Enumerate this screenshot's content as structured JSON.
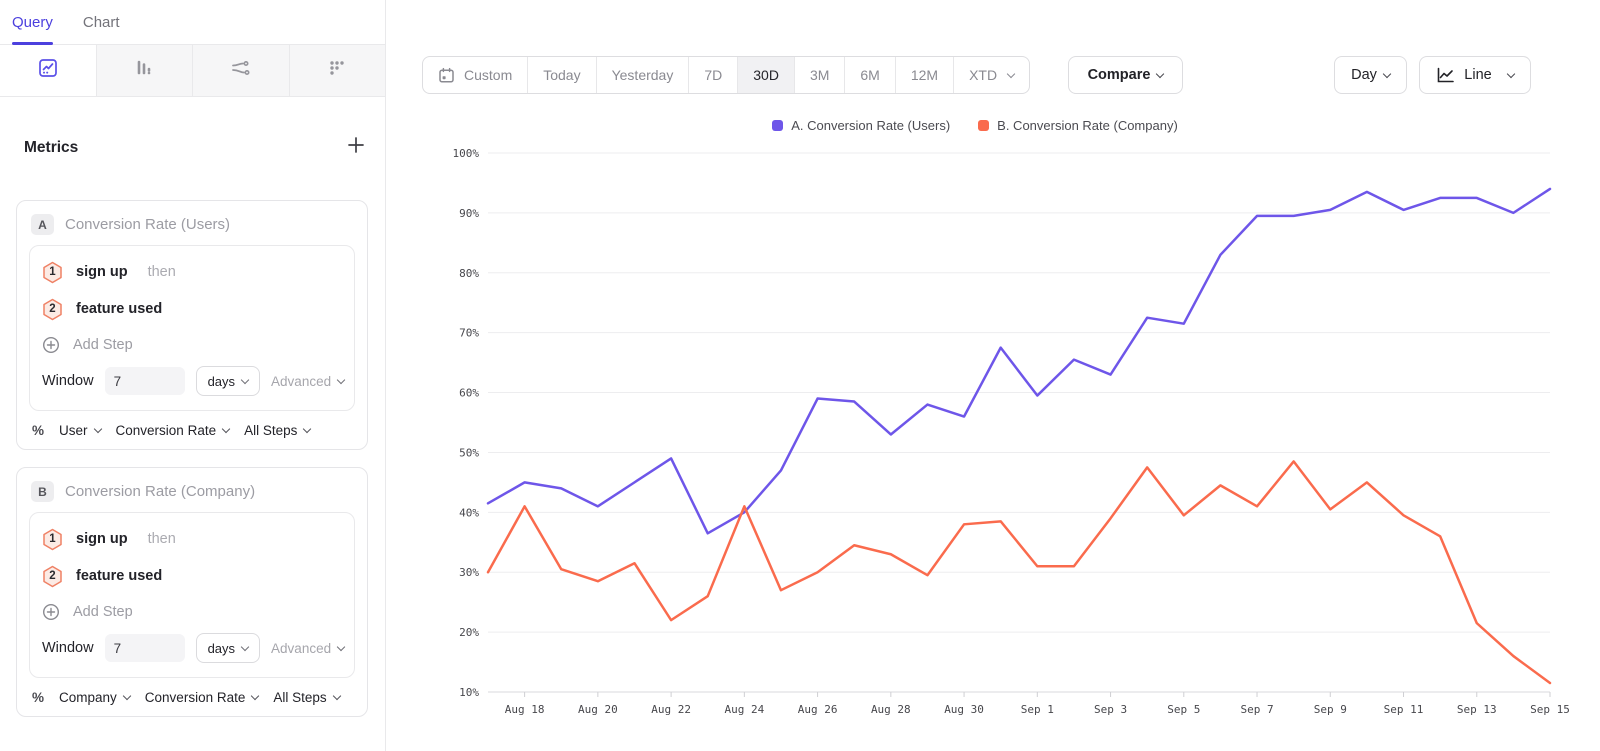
{
  "sidebar": {
    "tabs": [
      {
        "label": "Query",
        "active": true
      },
      {
        "label": "Chart",
        "active": false
      }
    ],
    "chart_type_tabs": [
      "insights",
      "bars",
      "flows",
      "retention"
    ],
    "metrics": {
      "heading": "Metrics",
      "cards": [
        {
          "badge": "A",
          "title": "Conversion Rate (Users)",
          "steps": [
            {
              "num": "1",
              "event": "sign up",
              "suffix": "then"
            },
            {
              "num": "2",
              "event": "feature used",
              "suffix": ""
            }
          ],
          "add_step_label": "Add Step",
          "window": {
            "label": "Window",
            "value": "7",
            "unit": "days",
            "advanced_label": "Advanced"
          },
          "measure": {
            "prefix": "%",
            "entity": "User",
            "metric": "Conversion Rate",
            "steps": "All Steps"
          }
        },
        {
          "badge": "B",
          "title": "Conversion Rate (Company)",
          "steps": [
            {
              "num": "1",
              "event": "sign up",
              "suffix": "then"
            },
            {
              "num": "2",
              "event": "feature used",
              "suffix": ""
            }
          ],
          "add_step_label": "Add Step",
          "window": {
            "label": "Window",
            "value": "7",
            "unit": "days",
            "advanced_label": "Advanced"
          },
          "measure": {
            "prefix": "%",
            "entity": "Company",
            "metric": "Conversion Rate",
            "steps": "All Steps"
          }
        }
      ]
    }
  },
  "toolbar": {
    "date_ranges": [
      "Custom",
      "Today",
      "Yesterday",
      "7D",
      "30D",
      "3M",
      "6M",
      "12M",
      "XTD"
    ],
    "selected_range": "30D",
    "compare_label": "Compare",
    "granularity_label": "Day",
    "chart_style_label": "Line"
  },
  "legend": [
    {
      "label": "A. Conversion Rate (Users)",
      "color": "#6E56E9"
    },
    {
      "label": "B. Conversion Rate (Company)",
      "color": "#FA6B4D"
    }
  ],
  "chart_data": {
    "type": "line",
    "title": "",
    "xlabel": "",
    "ylabel": "",
    "ylabel_format": "percent",
    "ylim": [
      10,
      100
    ],
    "yticks": [
      10,
      20,
      30,
      40,
      50,
      60,
      70,
      80,
      90,
      100
    ],
    "grid": true,
    "legend_position": "top-center",
    "x": [
      "Aug 17",
      "Aug 18",
      "Aug 19",
      "Aug 20",
      "Aug 21",
      "Aug 22",
      "Aug 23",
      "Aug 24",
      "Aug 25",
      "Aug 26",
      "Aug 27",
      "Aug 28",
      "Aug 29",
      "Aug 30",
      "Aug 31",
      "Sep 1",
      "Sep 2",
      "Sep 3",
      "Sep 4",
      "Sep 5",
      "Sep 6",
      "Sep 7",
      "Sep 8",
      "Sep 9",
      "Sep 10",
      "Sep 11",
      "Sep 12",
      "Sep 13",
      "Sep 14",
      "Sep 15"
    ],
    "x_tick_labels": [
      "Aug 18",
      "Aug 20",
      "Aug 22",
      "Aug 24",
      "Aug 26",
      "Aug 28",
      "Aug 30",
      "Sep 1",
      "Sep 3",
      "Sep 5",
      "Sep 7",
      "Sep 9",
      "Sep 11",
      "Sep 13",
      "Sep 15"
    ],
    "series": [
      {
        "name": "A. Conversion Rate (Users)",
        "color": "#6E56E9",
        "values": [
          41.5,
          45,
          44,
          41,
          45,
          49,
          36.5,
          40,
          47,
          59,
          58.5,
          53,
          58,
          56,
          67.5,
          59.5,
          65.5,
          63,
          72.5,
          71.5,
          83,
          89.5,
          89.5,
          90.5,
          93.5,
          90.5,
          92.5,
          92.5,
          90,
          94
        ]
      },
      {
        "name": "B. Conversion Rate (Company)",
        "color": "#FA6B4D",
        "values": [
          30,
          41,
          30.5,
          28.5,
          31.5,
          22,
          26,
          41,
          27,
          30,
          34.5,
          33,
          29.5,
          38,
          38.5,
          31,
          31,
          39,
          47.5,
          39.5,
          44.5,
          41,
          48.5,
          40.5,
          45,
          39.5,
          36,
          21.5,
          16,
          11.5
        ]
      }
    ]
  }
}
